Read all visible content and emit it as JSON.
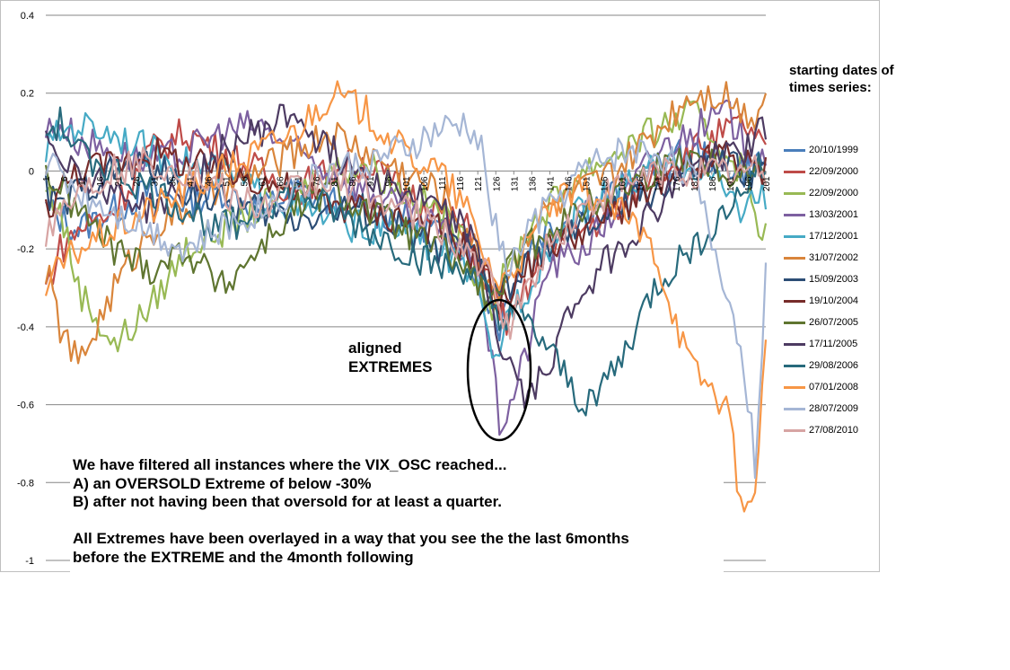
{
  "chart_data": {
    "type": "line",
    "title": "",
    "xlabel": "",
    "ylabel": "",
    "ylim": [
      -1,
      0.4
    ],
    "yticks": [
      0.4,
      0.2,
      0,
      -0.2,
      -0.4,
      -0.6,
      -0.8,
      -1
    ],
    "ytick_labels": [
      "0.4",
      "0.2",
      "0",
      "-0.2",
      "-0.4",
      "-0.6",
      "-0.8",
      "-1"
    ],
    "xlim": [
      1,
      201
    ],
    "xtick_labels": [
      "1",
      "6",
      "11",
      "16",
      "21",
      "26",
      "31",
      "36",
      "41",
      "46",
      "51",
      "56",
      "61",
      "66",
      "71",
      "76",
      "81",
      "86",
      "91",
      "96",
      "101",
      "106",
      "111",
      "116",
      "121",
      "126",
      "131",
      "136",
      "141",
      "146",
      "151",
      "156",
      "161",
      "166",
      "171",
      "176",
      "181",
      "186",
      "191",
      "196",
      "201"
    ],
    "grid": "horizontal",
    "legend_title": "starting dates of times series:",
    "legend_position": "right",
    "annotation": "aligned EXTREMES",
    "x_keys": [
      1,
      5,
      10,
      20,
      30,
      40,
      50,
      60,
      70,
      80,
      90,
      100,
      110,
      118,
      122,
      125,
      127,
      130,
      135,
      140,
      150,
      160,
      170,
      180,
      190,
      195,
      198,
      201
    ],
    "series": [
      {
        "name": "20/10/1999",
        "color": "#4A7EBB",
        "values": [
          -0.1,
          -0.12,
          -0.15,
          -0.1,
          -0.05,
          -0.08,
          -0.05,
          -0.1,
          -0.05,
          -0.08,
          -0.1,
          -0.12,
          -0.15,
          -0.2,
          -0.3,
          -0.35,
          -0.4,
          -0.3,
          -0.2,
          -0.15,
          -0.1,
          -0.05,
          0,
          0.05,
          0.02,
          0,
          0.02,
          0.03
        ]
      },
      {
        "name": "22/09/2000",
        "color": "#BE4B48",
        "values": [
          -0.3,
          -0.2,
          -0.15,
          -0.1,
          0.05,
          0.1,
          0.05,
          0,
          -0.05,
          0,
          0.02,
          -0.05,
          -0.1,
          -0.15,
          -0.25,
          -0.3,
          -0.35,
          -0.4,
          -0.3,
          -0.2,
          -0.15,
          -0.1,
          0,
          0.05,
          0.1,
          0.12,
          0.08,
          0.05
        ]
      },
      {
        "name": "22/09/2000",
        "color": "#98B954",
        "values": [
          -0.05,
          -0.1,
          -0.3,
          -0.45,
          -0.35,
          -0.2,
          -0.15,
          -0.1,
          -0.05,
          0,
          0.02,
          -0.05,
          -0.1,
          -0.2,
          -0.3,
          -0.35,
          -0.3,
          -0.25,
          -0.15,
          -0.1,
          0,
          0.05,
          0.1,
          0.15,
          0.05,
          0,
          -0.1,
          -0.17
        ]
      },
      {
        "name": "13/03/2001",
        "color": "#7D60A0",
        "values": [
          0.1,
          0.12,
          0.08,
          0.05,
          0.02,
          0.05,
          0.1,
          0.12,
          0.05,
          0,
          -0.05,
          -0.1,
          -0.15,
          -0.2,
          -0.3,
          -0.5,
          -0.65,
          -0.6,
          -0.45,
          -0.25,
          -0.2,
          -0.1,
          0.05,
          0.1,
          0.15,
          0.08,
          0.05,
          0.05
        ]
      },
      {
        "name": "17/12/2001",
        "color": "#46AAC5",
        "values": [
          0.05,
          0.1,
          0.12,
          0.1,
          0.05,
          0.02,
          0,
          -0.05,
          -0.1,
          -0.12,
          -0.15,
          -0.15,
          -0.2,
          -0.25,
          -0.35,
          -0.5,
          -0.45,
          -0.35,
          -0.3,
          -0.2,
          -0.1,
          -0.05,
          0,
          0.02,
          -0.05,
          -0.1,
          -0.05,
          -0.08
        ]
      },
      {
        "name": "31/07/2002",
        "color": "#D9853B",
        "values": [
          -0.25,
          -0.4,
          -0.5,
          -0.3,
          -0.15,
          -0.1,
          -0.05,
          0,
          0.05,
          0.1,
          0.05,
          0,
          -0.05,
          -0.15,
          -0.25,
          -0.3,
          -0.3,
          -0.25,
          -0.15,
          -0.1,
          -0.05,
          0,
          0.1,
          0.2,
          0.2,
          0.15,
          0.15,
          0.2
        ]
      },
      {
        "name": "15/09/2003",
        "color": "#2C4D75",
        "values": [
          -0.05,
          -0.1,
          -0.05,
          0,
          0.02,
          -0.05,
          -0.08,
          -0.1,
          -0.12,
          -0.1,
          -0.1,
          -0.15,
          -0.2,
          -0.2,
          -0.25,
          -0.3,
          -0.3,
          -0.3,
          -0.25,
          -0.2,
          -0.15,
          -0.1,
          -0.05,
          0,
          0.02,
          0,
          0,
          0
        ]
      },
      {
        "name": "19/10/2004",
        "color": "#772C2A",
        "values": [
          -0.1,
          -0.05,
          0,
          0.02,
          0.05,
          0.02,
          0,
          -0.02,
          -0.05,
          -0.08,
          -0.1,
          -0.12,
          -0.15,
          -0.2,
          -0.25,
          -0.3,
          -0.35,
          -0.3,
          -0.25,
          -0.2,
          -0.15,
          -0.1,
          -0.05,
          0,
          0.05,
          0.02,
          0,
          0
        ]
      },
      {
        "name": "26/07/2005",
        "color": "#5F7530",
        "values": [
          0,
          -0.05,
          -0.1,
          -0.2,
          -0.25,
          -0.2,
          -0.3,
          -0.2,
          -0.1,
          -0.05,
          -0.1,
          -0.15,
          -0.2,
          -0.25,
          -0.3,
          -0.35,
          -0.3,
          -0.25,
          -0.2,
          -0.15,
          -0.1,
          -0.05,
          0,
          0.05,
          0,
          0,
          0,
          0
        ]
      },
      {
        "name": "17/11/2005",
        "color": "#4D3B62",
        "values": [
          0.1,
          0.05,
          0,
          -0.05,
          -0.1,
          -0.05,
          0.05,
          0.1,
          0.15,
          0.05,
          0,
          -0.05,
          -0.1,
          -0.15,
          -0.25,
          -0.35,
          -0.45,
          -0.5,
          -0.6,
          -0.5,
          -0.3,
          -0.2,
          -0.1,
          0,
          0.05,
          0.05,
          0.1,
          0.1
        ]
      },
      {
        "name": "29/08/2006",
        "color": "#276A7C",
        "values": [
          0.1,
          0.12,
          0.05,
          0,
          -0.05,
          -0.1,
          -0.15,
          -0.1,
          -0.05,
          -0.1,
          -0.15,
          -0.2,
          -0.25,
          -0.25,
          -0.3,
          -0.35,
          -0.4,
          -0.35,
          -0.4,
          -0.45,
          -0.6,
          -0.5,
          -0.3,
          -0.2,
          -0.1,
          -0.05,
          0,
          0
        ]
      },
      {
        "name": "07/01/2008",
        "color": "#F79646",
        "values": [
          -0.3,
          -0.25,
          -0.2,
          -0.15,
          -0.1,
          -0.05,
          0,
          0.05,
          0.1,
          0.2,
          0.15,
          0.05,
          0,
          -0.1,
          -0.2,
          -0.25,
          -0.3,
          -0.25,
          -0.2,
          -0.1,
          -0.05,
          -0.1,
          -0.2,
          -0.5,
          -0.6,
          -0.9,
          -0.8,
          -0.45
        ]
      },
      {
        "name": "28/07/2009",
        "color": "#A5B6D5",
        "values": [
          0.02,
          0,
          -0.05,
          -0.1,
          -0.15,
          -0.2,
          -0.15,
          -0.1,
          -0.05,
          0,
          0.02,
          0.05,
          0.1,
          0.12,
          0.05,
          -0.1,
          -0.2,
          -0.25,
          -0.15,
          -0.1,
          0,
          0.05,
          0.05,
          0,
          -0.3,
          -0.5,
          -0.75,
          -0.27
        ]
      },
      {
        "name": "27/08/2010",
        "color": "#D7A4A3",
        "values": [
          -0.15,
          -0.1,
          -0.05,
          0,
          0.02,
          0,
          -0.05,
          -0.1,
          -0.05,
          -0.02,
          -0.05,
          -0.1,
          -0.15,
          -0.2,
          -0.25,
          -0.3,
          -0.35,
          -0.4,
          -0.3,
          -0.2,
          -0.1,
          -0.05,
          0,
          0,
          0,
          0,
          0,
          0
        ]
      }
    ]
  },
  "notes": [
    "We have filtered all instances where the VIX_OSC reached...",
    "A) an OVERSOLD Extreme of below -30%",
    "B) after not having been that oversold for at least a quarter.",
    "",
    "All Extremes have been overlayed in a way that you see the the last 6months",
    "before the EXTREME and the 4month following"
  ]
}
